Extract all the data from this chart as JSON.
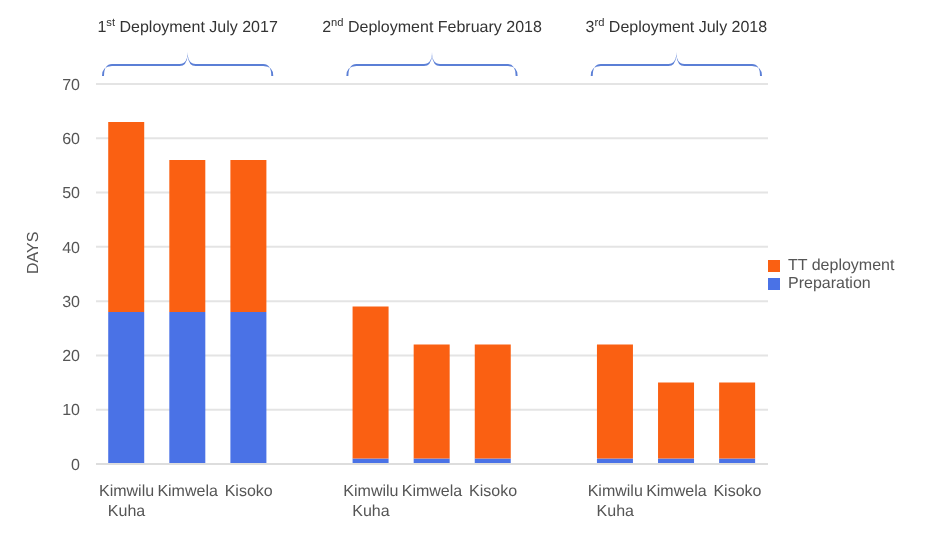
{
  "chart_data": {
    "type": "bar",
    "stacked": true,
    "ylabel": "DAYS",
    "categories": [
      "Kimwilu Kuha",
      "Kimwela",
      "Kisoko",
      null,
      "Kimwilu Kuha",
      "Kimwela",
      "Kisoko",
      null,
      "Kimwilu Kuha",
      "Kimwela",
      "Kisoko"
    ],
    "series": [
      {
        "name": "Preparation",
        "color": "#4a72e6",
        "values": [
          28,
          28,
          28,
          null,
          1,
          1,
          1,
          null,
          1,
          1,
          1
        ]
      },
      {
        "name": "TT deployment",
        "color": "#fa6012",
        "values": [
          35,
          28,
          28,
          null,
          28,
          21,
          21,
          null,
          21,
          14,
          14
        ]
      }
    ],
    "ylim": [
      0,
      70
    ],
    "yticks": [
      0,
      10,
      20,
      30,
      40,
      50,
      60,
      70
    ],
    "grid": "y",
    "legend": "right",
    "annotations": [
      "1$^{st}$ Deployment July 2017",
      "2$^{nd}$ Deployment February 2018",
      "3$^{rd}$ Deployment July 2018"
    ]
  }
}
